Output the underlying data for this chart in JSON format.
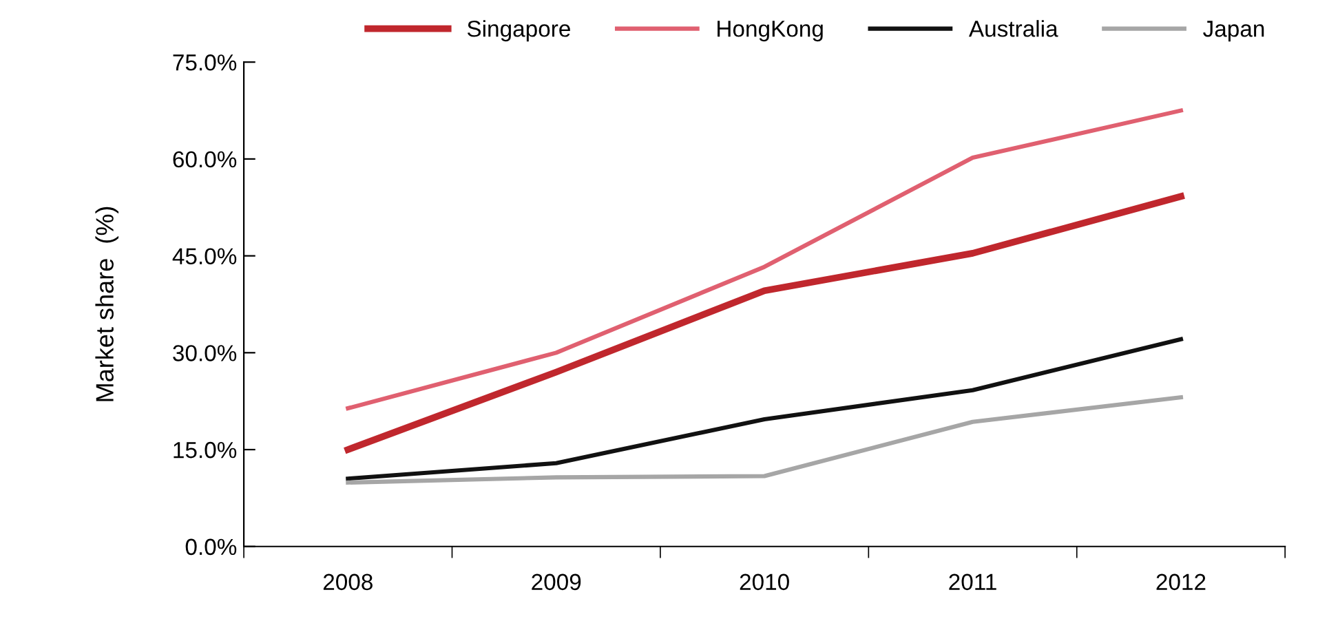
{
  "chart_data": {
    "type": "line",
    "ylabel": "Market share  (%)",
    "categories": [
      "2008",
      "2009",
      "2010",
      "2011",
      "2012"
    ],
    "series": [
      {
        "name": "Singapore",
        "color": "#c0272d",
        "values": [
          15.0,
          27.0,
          39.6,
          45.4,
          54.2
        ]
      },
      {
        "name": "HongKong",
        "color": "#e06070",
        "values": [
          21.4,
          30.0,
          43.3,
          60.2,
          67.5
        ]
      },
      {
        "name": "Australia",
        "color": "#111111",
        "values": [
          10.5,
          12.9,
          19.7,
          24.2,
          32.1
        ]
      },
      {
        "name": "Japan",
        "color": "#a6a6a6",
        "values": [
          9.9,
          10.7,
          10.9,
          19.3,
          23.1
        ]
      }
    ],
    "ylim": [
      0,
      75
    ],
    "yticks": [
      {
        "value": 0,
        "label": "0.0%"
      },
      {
        "value": 15,
        "label": "15.0%"
      },
      {
        "value": 30,
        "label": "30.0%"
      },
      {
        "value": 45,
        "label": "45.0%"
      },
      {
        "value": 60,
        "label": "60.0%"
      },
      {
        "value": 75,
        "label": "75.0%"
      }
    ],
    "grid": false,
    "legend": "top",
    "marker": "none",
    "line_style": "solid"
  }
}
